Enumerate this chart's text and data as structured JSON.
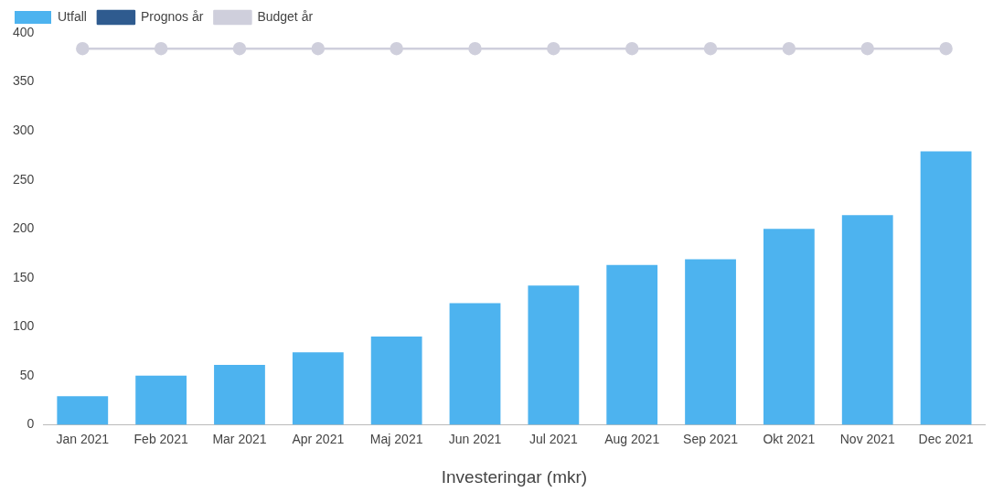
{
  "chart_data": {
    "type": "bar",
    "xlabel": "Investeringar (mkr)",
    "categories": [
      "Jan 2021",
      "Feb 2021",
      "Mar 2021",
      "Apr 2021",
      "Maj 2021",
      "Jun 2021",
      "Jul 2021",
      "Aug 2021",
      "Sep 2021",
      "Okt 2021",
      "Nov 2021",
      "Dec 2021"
    ],
    "series": [
      {
        "name": "Utfall",
        "color": "#4db3ef",
        "values": [
          29,
          50,
          61,
          74,
          90,
          124,
          142,
          163,
          169,
          200,
          214,
          279
        ]
      },
      {
        "name": "Prognos år",
        "type": "line",
        "color": "#2f5b8f",
        "values": [
          null,
          null,
          null,
          null,
          null,
          null,
          null,
          null,
          null,
          null,
          null,
          null
        ]
      },
      {
        "name": "Budget år",
        "type": "line",
        "color": "#cfcfdc",
        "values": [
          384,
          384,
          384,
          384,
          384,
          384,
          384,
          384,
          384,
          384,
          384,
          384
        ]
      }
    ],
    "ylim": [
      0,
      400
    ],
    "yticks": [
      0,
      50,
      100,
      150,
      200,
      250,
      300,
      350,
      400
    ],
    "grid": false,
    "legend": "top left",
    "marker": "circle",
    "line_style": "solid"
  }
}
